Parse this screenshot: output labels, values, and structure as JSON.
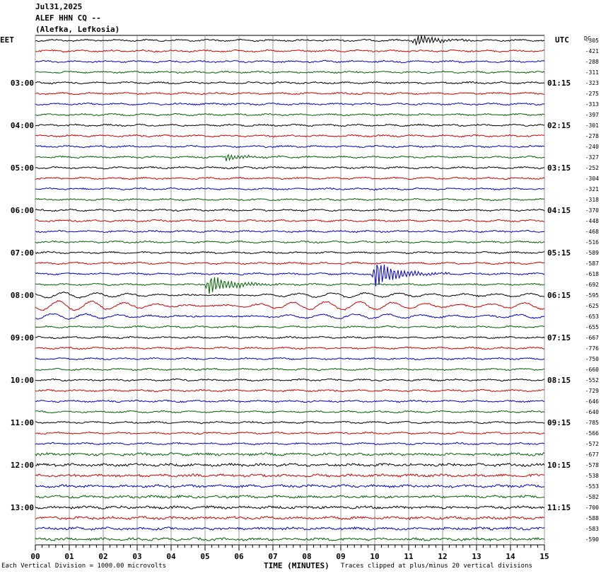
{
  "header": {
    "date": "Jul31,2025",
    "station": "ALEF HHN CQ --",
    "location": "(Alefka, Lefkosia)"
  },
  "left_tz": "EET",
  "right_tz": "UTC",
  "dc_header": "DC",
  "footer": {
    "scale_note": "Each Vertical Division = 1000.00 microvolts",
    "xlabel": "TIME (MINUTES)",
    "clip_note": "Traces clipped at plus/minus 20 vertical divisions"
  },
  "colors": {
    "black": "#000000",
    "red": "#d00000",
    "blue": "#0000cc",
    "green": "#006400",
    "grid": "#808080"
  },
  "chart_data": {
    "type": "line",
    "x_ticks": [
      "00",
      "01",
      "02",
      "03",
      "04",
      "05",
      "06",
      "07",
      "08",
      "09",
      "10",
      "11",
      "12",
      "13",
      "14",
      "15"
    ],
    "xlim": [
      0,
      15
    ],
    "trace_colors": [
      "black",
      "red",
      "blue",
      "green"
    ],
    "left_hour_labels": [
      "03:00",
      "04:00",
      "05:00",
      "06:00",
      "07:00",
      "08:00",
      "09:00",
      "10:00",
      "11:00",
      "12:00",
      "13:00"
    ],
    "right_time_labels": [
      "01:15",
      "02:15",
      "03:15",
      "04:15",
      "05:15",
      "06:15",
      "07:15",
      "08:15",
      "09:15",
      "10:15",
      "11:15"
    ],
    "dc_offsets": [
      -305,
      -421,
      -288,
      -311,
      -323,
      -275,
      -313,
      -397,
      -301,
      -278,
      -240,
      -327,
      -252,
      -304,
      -321,
      -318,
      -370,
      -448,
      -468,
      -516,
      -589,
      -587,
      -618,
      -692,
      -595,
      -625,
      -653,
      -655,
      -667,
      -776,
      -750,
      -660,
      -552,
      -729,
      -646,
      -640,
      -785,
      -566,
      -572,
      -677,
      -578,
      -538,
      -553,
      -582,
      -700,
      -588,
      -583,
      -590
    ],
    "events": [
      {
        "trace": 11,
        "minute": 5.6,
        "amplitude": 5
      },
      {
        "trace": 22,
        "minute": 10.0,
        "amplitude": 20
      },
      {
        "trace": 23,
        "minute": 5.1,
        "amplitude": 14
      },
      {
        "trace": 0,
        "minute": 11.2,
        "amplitude": 8
      }
    ]
  }
}
